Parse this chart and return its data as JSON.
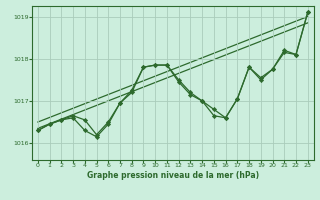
{
  "title": "Graphe pression niveau de la mer (hPa)",
  "bg_color": "#cceedd",
  "line_color": "#2d6a2d",
  "grid_color": "#aaccbb",
  "ylim": [
    1015.6,
    1019.25
  ],
  "xlim": [
    -0.5,
    23.5
  ],
  "yticks": [
    1016,
    1017,
    1018,
    1019
  ],
  "xticks": [
    0,
    1,
    2,
    3,
    4,
    5,
    6,
    7,
    8,
    9,
    10,
    11,
    12,
    13,
    14,
    15,
    16,
    17,
    18,
    19,
    20,
    21,
    22,
    23
  ],
  "series1_x": [
    0,
    1,
    2,
    3,
    4,
    5,
    6,
    7,
    8,
    9,
    10,
    11,
    12,
    13,
    14,
    15,
    16,
    17,
    18,
    19,
    20,
    21,
    22,
    23
  ],
  "series1_y": [
    1016.3,
    1016.45,
    1016.55,
    1016.6,
    1016.3,
    1016.15,
    1016.45,
    1016.95,
    1017.2,
    1017.8,
    1017.85,
    1017.85,
    1017.45,
    1017.15,
    1017.0,
    1016.8,
    1016.6,
    1017.05,
    1017.8,
    1017.5,
    1017.75,
    1018.15,
    1018.1,
    1019.1
  ],
  "series2_x": [
    0,
    1,
    2,
    3,
    4,
    5,
    6,
    7,
    8,
    9,
    10,
    11,
    12,
    13,
    14,
    15,
    16,
    17,
    18,
    19,
    20,
    21,
    22,
    23
  ],
  "series2_y": [
    1016.3,
    1016.45,
    1016.55,
    1016.65,
    1016.55,
    1016.2,
    1016.5,
    1016.95,
    1017.25,
    1017.8,
    1017.85,
    1017.85,
    1017.5,
    1017.2,
    1017.0,
    1016.65,
    1016.6,
    1017.05,
    1017.8,
    1017.55,
    1017.75,
    1018.2,
    1018.1,
    1019.1
  ],
  "trend1_x": [
    0,
    23
  ],
  "trend1_y": [
    1016.35,
    1018.85
  ],
  "trend2_x": [
    0,
    23
  ],
  "trend2_y": [
    1016.5,
    1019.0
  ],
  "figsize": [
    3.2,
    2.0
  ],
  "dpi": 100
}
